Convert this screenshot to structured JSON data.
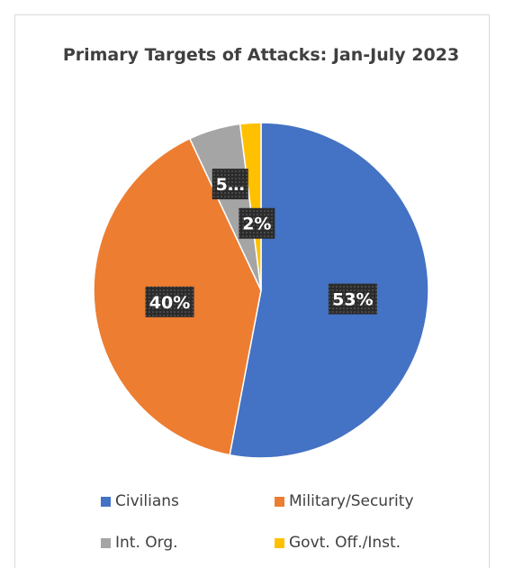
{
  "chart_data": {
    "type": "pie",
    "title": "Primary Targets of Attacks: Jan-July 2023",
    "slices": [
      {
        "name": "Civilians",
        "value": 53,
        "label": "53%",
        "color": "#4472C4"
      },
      {
        "name": "Military/Security",
        "value": 40,
        "label": "40%",
        "color": "#ED7D31"
      },
      {
        "name": "Int. Org.",
        "value": 5,
        "label": "5…",
        "color": "#A5A5A5"
      },
      {
        "name": "Govt. Off./Inst.",
        "value": 2,
        "label": "2%",
        "color": "#FFC000"
      }
    ],
    "legend_position": "bottom",
    "start_angle_deg": 0,
    "direction": "clockwise"
  }
}
